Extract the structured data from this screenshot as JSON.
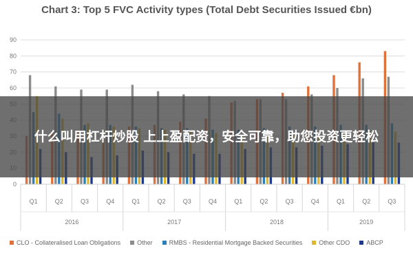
{
  "chart_data": {
    "type": "bar",
    "title": "Chart 3: Top 5 FVC Activity types (Total Debt Securities Issued €bn)",
    "xlabel": "",
    "ylabel": "",
    "ylim": [
      0,
      90
    ],
    "yticks": [
      0,
      10,
      20,
      30,
      40,
      50,
      60,
      70,
      80,
      90
    ],
    "categories": [
      "Q1",
      "Q2",
      "Q3",
      "Q4",
      "Q1",
      "Q2",
      "Q3",
      "Q4",
      "Q1",
      "Q2",
      "Q3",
      "Q4",
      "Q1",
      "Q2",
      "Q3"
    ],
    "groups": [
      {
        "label": "2016",
        "count": 4
      },
      {
        "label": "2017",
        "count": 4
      },
      {
        "label": "2018",
        "count": 4
      },
      {
        "label": "2019",
        "count": 3
      }
    ],
    "grid": true,
    "legend_position": "bottom",
    "series": [
      {
        "name": "CLO - Collateralised Loan Obligations",
        "color": "#e2703a",
        "values": [
          30,
          32,
          33,
          34,
          36,
          37,
          39,
          41,
          51,
          53,
          57,
          61,
          68,
          76,
          83
        ]
      },
      {
        "name": "Other",
        "color": "#8c8c8c",
        "values": [
          68,
          61,
          59,
          59,
          62,
          58,
          56,
          55,
          52,
          53,
          53,
          56,
          60,
          66,
          67
        ]
      },
      {
        "name": "RMBS - Residential Mortgage Backed Securities",
        "color": "#2b7fb8",
        "values": [
          45,
          44,
          37,
          37,
          36,
          35,
          35,
          34,
          34,
          35,
          36,
          36,
          37,
          37,
          38
        ]
      },
      {
        "name": "Other CDO",
        "color": "#e0b830",
        "values": [
          55,
          41,
          38,
          36,
          35,
          34,
          33,
          32,
          31,
          31,
          31,
          32,
          32,
          33,
          33
        ]
      },
      {
        "name": "ABCP",
        "color": "#1f3a8c",
        "values": [
          22,
          20,
          17,
          18,
          21,
          20,
          19,
          19,
          22,
          23,
          23,
          24,
          25,
          26,
          26
        ]
      }
    ]
  },
  "overlay": {
    "text": "什么叫用杠杆炒股 上上盈配资，安全可靠，助您投资更轻松"
  }
}
